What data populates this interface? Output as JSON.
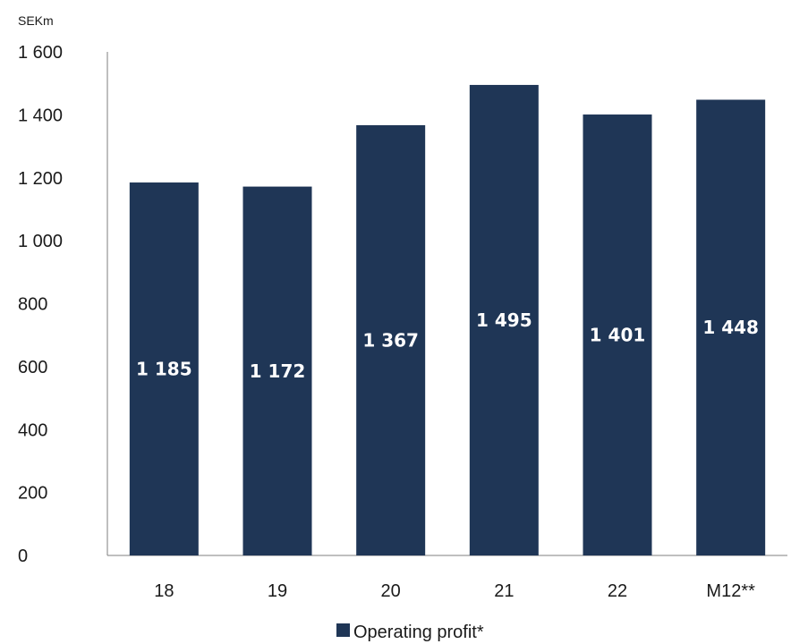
{
  "chart_data": {
    "type": "bar",
    "categories": [
      "18",
      "19",
      "20",
      "21",
      "22",
      "M12**"
    ],
    "series": [
      {
        "name": "Operating profit*",
        "values": [
          1185,
          1172,
          1367,
          1495,
          1401,
          1448
        ]
      }
    ],
    "data_labels": [
      "1 185",
      "1 172",
      "1 367",
      "1 495",
      "1 401",
      "1 448"
    ],
    "ylabel": "SEKm",
    "xlabel": "",
    "ylim": [
      0,
      1600
    ],
    "yticks": [
      0,
      200,
      400,
      600,
      800,
      1000,
      1200,
      1400,
      1600
    ],
    "ytick_labels": [
      "0",
      "200",
      "400",
      "600",
      "800",
      "1 000",
      "1 200",
      "1 400",
      "1 600"
    ],
    "grid": false,
    "legend_position": "bottom-center",
    "colors": {
      "bar": "#1f3656",
      "axis": "#7f7f7f",
      "text": "#1a1a1a",
      "label": "#ffffff"
    }
  }
}
